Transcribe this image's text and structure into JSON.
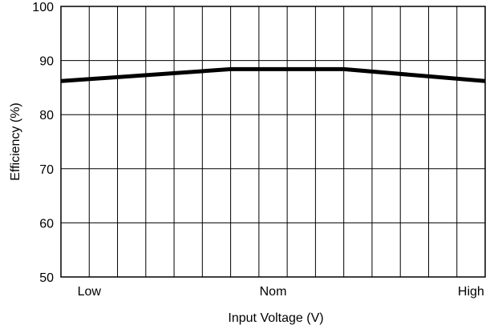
{
  "chart_data": {
    "type": "line",
    "title": "",
    "xlabel": "Input Voltage (V)",
    "ylabel": "Efficiency (%)",
    "ylim": [
      50,
      100
    ],
    "xlim": [
      0,
      15
    ],
    "yticks": [
      50,
      60,
      70,
      80,
      90,
      100
    ],
    "xtick_labels": [
      {
        "label": "Low",
        "x": 1
      },
      {
        "label": "Nom",
        "x": 7.5
      },
      {
        "label": "High",
        "x": 14.5
      }
    ],
    "grid": true,
    "vertical_grid_count": 15,
    "series": [
      {
        "color": "#000000",
        "x": [
          0,
          6,
          7.5,
          10,
          15
        ],
        "y": [
          86.2,
          88.4,
          88.4,
          88.4,
          86.2
        ]
      }
    ]
  }
}
